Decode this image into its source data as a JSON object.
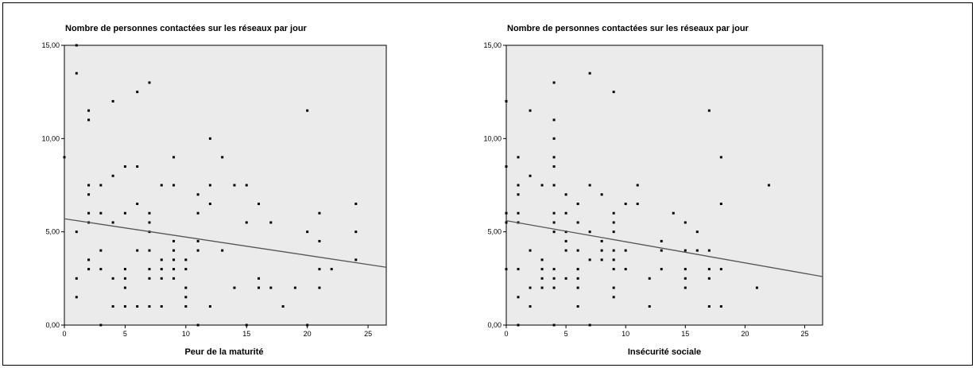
{
  "chart_data": [
    {
      "type": "scatter",
      "title": "Nombre de personnes contactées sur les réseaux par jour",
      "xlabel": "Peur de la maturité",
      "ylabel": "",
      "xlim": [
        0,
        26.5
      ],
      "ylim": [
        0,
        15.0
      ],
      "x_ticks": [
        "0",
        "5",
        "10",
        "15",
        "20",
        "25"
      ],
      "y_ticks": [
        "0,00",
        "5,00",
        "10,00",
        "15,00"
      ],
      "grid": false,
      "plot_background": "#ebebeb",
      "marker_color": "#000000",
      "fit_line": {
        "x": [
          0,
          26.5
        ],
        "y": [
          5.7,
          3.1
        ],
        "color": "#555555"
      },
      "points": [
        [
          0,
          9
        ],
        [
          1,
          15
        ],
        [
          1,
          13.5
        ],
        [
          1,
          5
        ],
        [
          1,
          2.5
        ],
        [
          1,
          1.5
        ],
        [
          2,
          11.5
        ],
        [
          2,
          11
        ],
        [
          2,
          7.5
        ],
        [
          2,
          7
        ],
        [
          2,
          6
        ],
        [
          2,
          5.5
        ],
        [
          2,
          3.5
        ],
        [
          2,
          3
        ],
        [
          3,
          7.5
        ],
        [
          3,
          6
        ],
        [
          3,
          4
        ],
        [
          3,
          3
        ],
        [
          3,
          0
        ],
        [
          4,
          12
        ],
        [
          4,
          8
        ],
        [
          4,
          5.5
        ],
        [
          4,
          2.5
        ],
        [
          4,
          1
        ],
        [
          5,
          8.5
        ],
        [
          5,
          6
        ],
        [
          5,
          3
        ],
        [
          5,
          2.5
        ],
        [
          5,
          2
        ],
        [
          5,
          1
        ],
        [
          6,
          12.5
        ],
        [
          6,
          8.5
        ],
        [
          6,
          6.5
        ],
        [
          6,
          4
        ],
        [
          6,
          1
        ],
        [
          7,
          13
        ],
        [
          7,
          6
        ],
        [
          7,
          5.5
        ],
        [
          7,
          5
        ],
        [
          7,
          4
        ],
        [
          7,
          3
        ],
        [
          7,
          2.5
        ],
        [
          7,
          1
        ],
        [
          8,
          7.5
        ],
        [
          8,
          3.5
        ],
        [
          8,
          3
        ],
        [
          8,
          2.5
        ],
        [
          8,
          1
        ],
        [
          9,
          9
        ],
        [
          9,
          7.5
        ],
        [
          9,
          4.5
        ],
        [
          9,
          4
        ],
        [
          9,
          3.5
        ],
        [
          9,
          3
        ],
        [
          9,
          2.5
        ],
        [
          10,
          3.5
        ],
        [
          10,
          3
        ],
        [
          10,
          2
        ],
        [
          10,
          1.5
        ],
        [
          10,
          1
        ],
        [
          11,
          7
        ],
        [
          11,
          6
        ],
        [
          11,
          4.5
        ],
        [
          11,
          4
        ],
        [
          11,
          0
        ],
        [
          12,
          10
        ],
        [
          12,
          7.5
        ],
        [
          12,
          6.5
        ],
        [
          12,
          1
        ],
        [
          13,
          9
        ],
        [
          13,
          4
        ],
        [
          14,
          7.5
        ],
        [
          14,
          2
        ],
        [
          15,
          7.5
        ],
        [
          15,
          5.5
        ],
        [
          15,
          0
        ],
        [
          16,
          6.5
        ],
        [
          16,
          2.5
        ],
        [
          16,
          2
        ],
        [
          17,
          5.5
        ],
        [
          17,
          2
        ],
        [
          18,
          1
        ],
        [
          19,
          2
        ],
        [
          20,
          11.5
        ],
        [
          20,
          5
        ],
        [
          20,
          0
        ],
        [
          21,
          6
        ],
        [
          21,
          4.5
        ],
        [
          21,
          3
        ],
        [
          21,
          2
        ],
        [
          22,
          3
        ],
        [
          24,
          6.5
        ],
        [
          24,
          5
        ],
        [
          24,
          3.5
        ]
      ]
    },
    {
      "type": "scatter",
      "title": "Nombre de personnes contactées sur les réseaux par jour",
      "xlabel": "Insécurité sociale",
      "ylabel": "",
      "xlim": [
        0,
        26.5
      ],
      "ylim": [
        0,
        15.0
      ],
      "x_ticks": [
        "0",
        "5",
        "10",
        "15",
        "20",
        "25"
      ],
      "y_ticks": [
        "0,00",
        "5,00",
        "10,00",
        "15,00"
      ],
      "grid": false,
      "plot_background": "#ebebeb",
      "marker_color": "#000000",
      "fit_line": {
        "x": [
          0,
          26.5
        ],
        "y": [
          5.6,
          2.6
        ],
        "color": "#555555"
      },
      "points": [
        [
          0,
          12
        ],
        [
          0,
          8.5
        ],
        [
          0,
          6
        ],
        [
          0,
          5.5
        ],
        [
          0,
          3
        ],
        [
          1,
          9
        ],
        [
          1,
          7.5
        ],
        [
          1,
          7
        ],
        [
          1,
          6
        ],
        [
          1,
          5.5
        ],
        [
          1,
          3
        ],
        [
          1,
          1.5
        ],
        [
          1,
          0
        ],
        [
          2,
          11.5
        ],
        [
          2,
          8
        ],
        [
          2,
          4
        ],
        [
          2,
          2
        ],
        [
          2,
          1
        ],
        [
          3,
          7.5
        ],
        [
          3,
          3.5
        ],
        [
          3,
          3
        ],
        [
          3,
          2.5
        ],
        [
          3,
          2
        ],
        [
          4,
          13
        ],
        [
          4,
          11
        ],
        [
          4,
          10
        ],
        [
          4,
          9
        ],
        [
          4,
          8.5
        ],
        [
          4,
          7.5
        ],
        [
          4,
          6
        ],
        [
          4,
          5.5
        ],
        [
          4,
          5
        ],
        [
          4,
          3
        ],
        [
          4,
          2.5
        ],
        [
          4,
          2
        ],
        [
          4,
          0
        ],
        [
          5,
          7
        ],
        [
          5,
          6
        ],
        [
          5,
          5
        ],
        [
          5,
          4.5
        ],
        [
          5,
          4
        ],
        [
          5,
          2.5
        ],
        [
          6,
          6.5
        ],
        [
          6,
          5.5
        ],
        [
          6,
          4
        ],
        [
          6,
          3
        ],
        [
          6,
          2.5
        ],
        [
          6,
          2
        ],
        [
          6,
          1
        ],
        [
          7,
          13.5
        ],
        [
          7,
          7.5
        ],
        [
          7,
          5
        ],
        [
          7,
          3.5
        ],
        [
          7,
          0
        ],
        [
          8,
          7
        ],
        [
          8,
          4.5
        ],
        [
          8,
          4
        ],
        [
          8,
          3.5
        ],
        [
          9,
          12.5
        ],
        [
          9,
          6
        ],
        [
          9,
          5.5
        ],
        [
          9,
          5
        ],
        [
          9,
          4
        ],
        [
          9,
          3.5
        ],
        [
          9,
          3
        ],
        [
          9,
          2
        ],
        [
          9,
          1.5
        ],
        [
          10,
          6.5
        ],
        [
          10,
          4
        ],
        [
          10,
          3
        ],
        [
          11,
          7.5
        ],
        [
          11,
          6.5
        ],
        [
          12,
          2.5
        ],
        [
          12,
          1
        ],
        [
          13,
          4.5
        ],
        [
          13,
          4
        ],
        [
          13,
          3
        ],
        [
          14,
          6
        ],
        [
          15,
          5.5
        ],
        [
          15,
          4
        ],
        [
          15,
          3
        ],
        [
          15,
          2.5
        ],
        [
          15,
          2
        ],
        [
          16,
          5
        ],
        [
          16,
          4
        ],
        [
          17,
          11.5
        ],
        [
          17,
          4
        ],
        [
          17,
          3
        ],
        [
          17,
          2.5
        ],
        [
          17,
          1
        ],
        [
          18,
          9
        ],
        [
          18,
          6.5
        ],
        [
          18,
          3
        ],
        [
          18,
          1
        ],
        [
          21,
          2
        ],
        [
          22,
          7.5
        ]
      ]
    }
  ]
}
